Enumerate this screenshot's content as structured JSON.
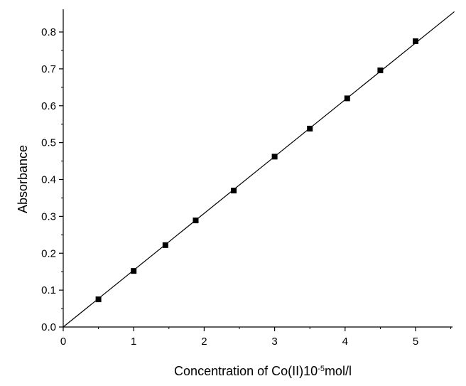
{
  "chart_data": {
    "type": "scatter",
    "xlabel": "Concentration of Co(II)10",
    "xlabel_superscript": "-5",
    "xlabel_suffix": "mol/l",
    "ylabel": "Absorbance",
    "xlim": [
      0,
      5.55
    ],
    "ylim": [
      0,
      0.85
    ],
    "x_ticks": [
      0,
      1,
      2,
      3,
      4,
      5
    ],
    "x_tick_labels": [
      "0",
      "1",
      "2",
      "3",
      "4",
      "5"
    ],
    "y_ticks": [
      0.0,
      0.1,
      0.2,
      0.3,
      0.4,
      0.5,
      0.6,
      0.7,
      0.8
    ],
    "y_tick_labels": [
      "0.0",
      "0.1",
      "0.2",
      "0.3",
      "0.4",
      "0.5",
      "0.6",
      "0.7",
      "0.8"
    ],
    "grid": false,
    "legend": "none",
    "marker": "square",
    "marker_color": "#000000",
    "series": [
      {
        "x": [
          0.5,
          1.0,
          1.45,
          1.88,
          2.42,
          3.0,
          3.5,
          4.03,
          4.5,
          5.0
        ],
        "y": [
          0.075,
          0.152,
          0.222,
          0.289,
          0.37,
          0.462,
          0.538,
          0.62,
          0.696,
          0.775
        ]
      }
    ],
    "fit_line": {
      "x": [
        0,
        5.55
      ],
      "y": [
        0,
        0.855
      ]
    }
  }
}
